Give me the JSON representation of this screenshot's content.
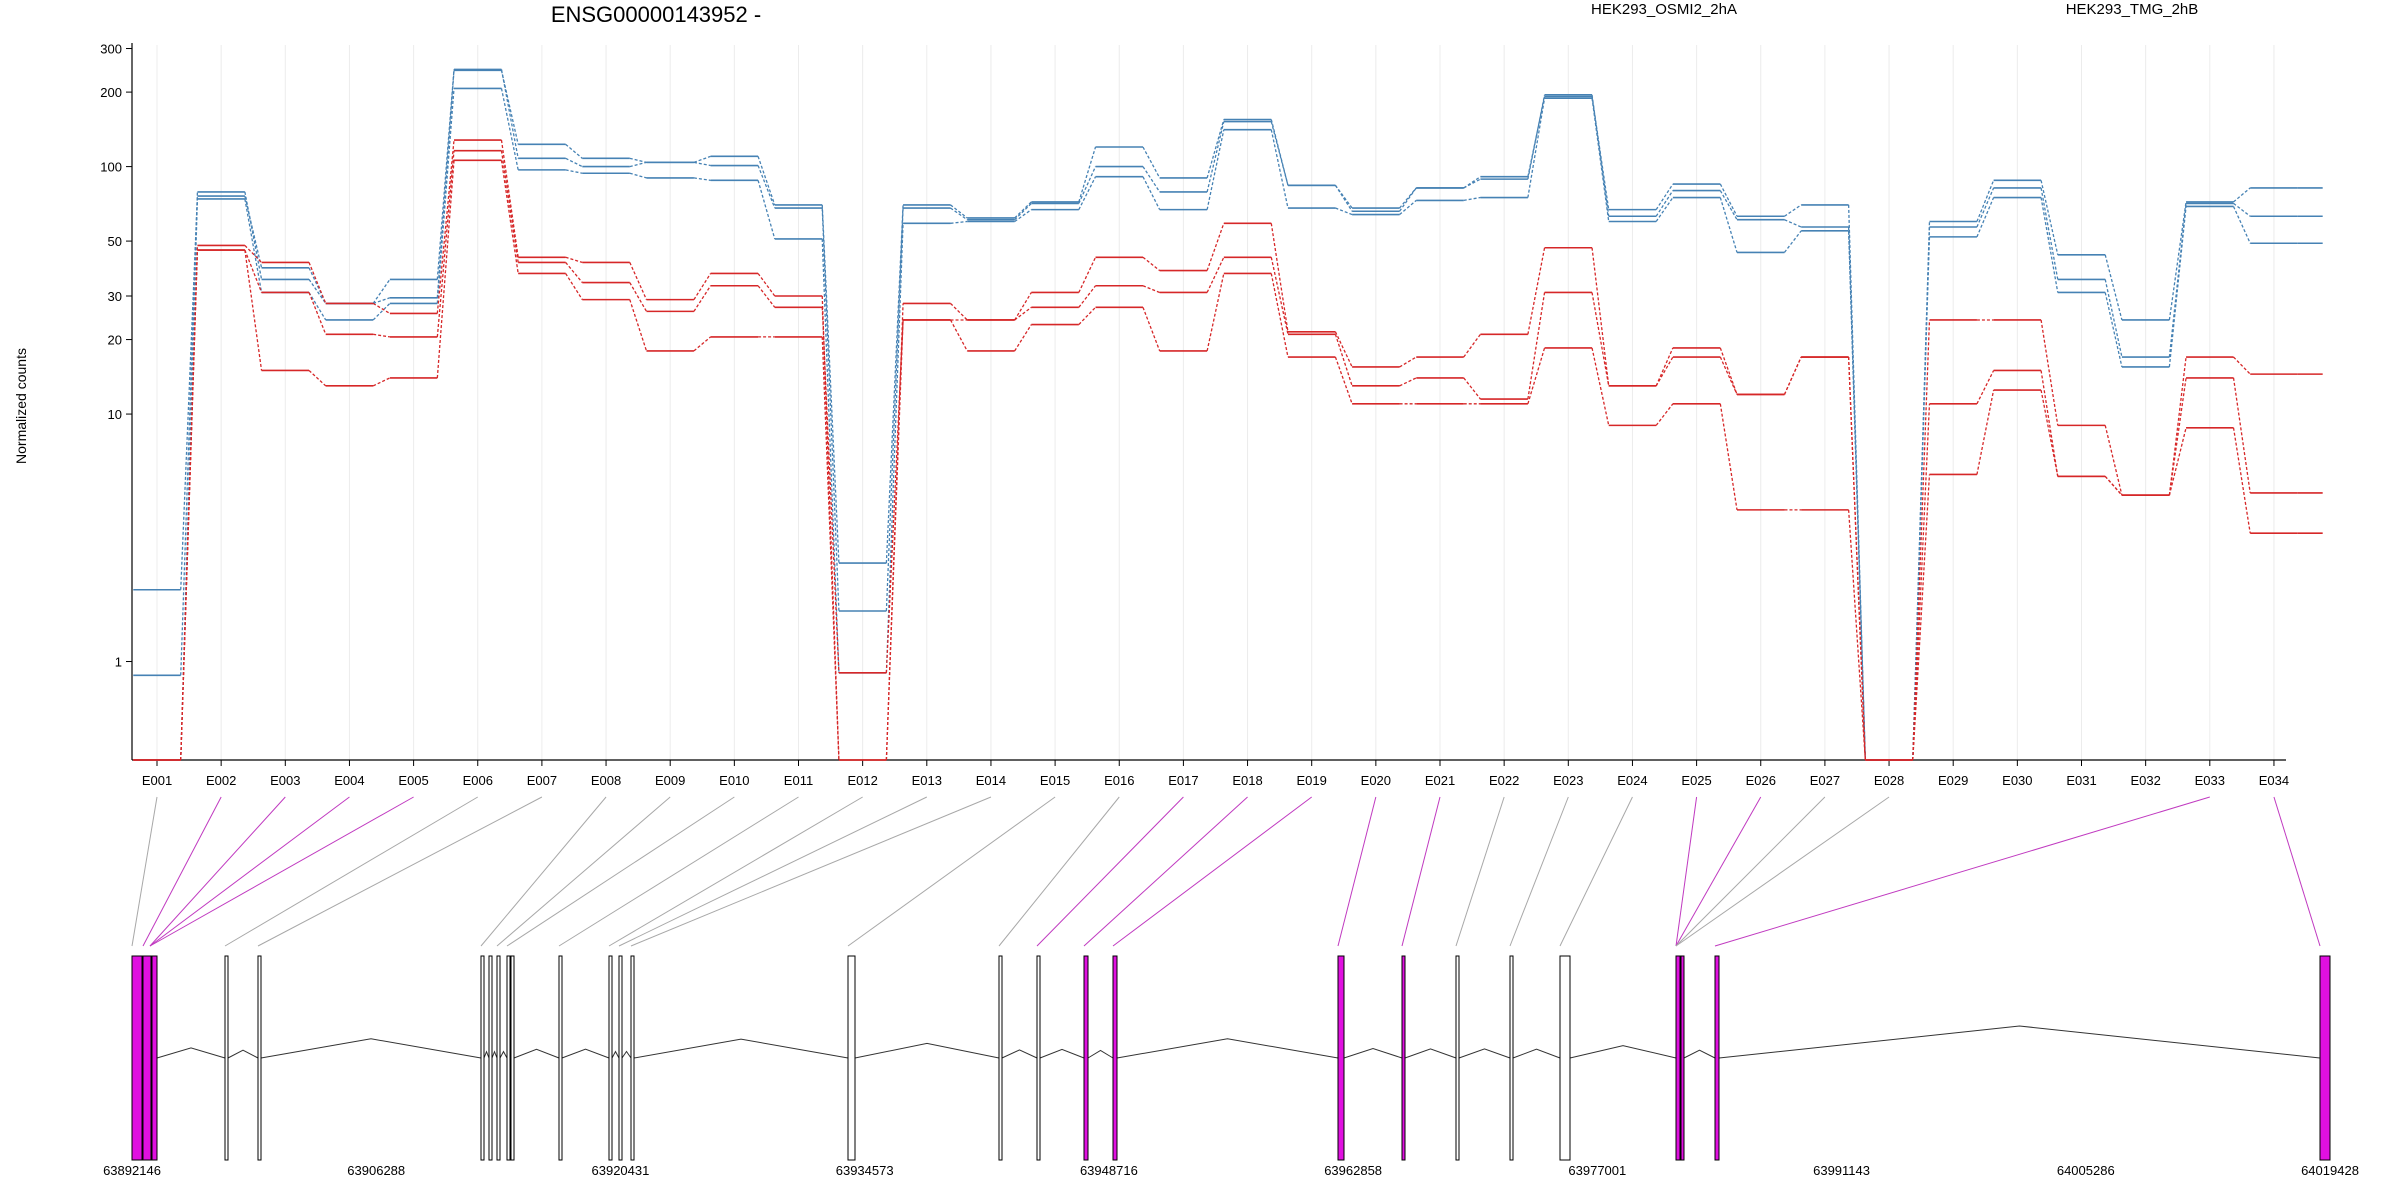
{
  "chart_data": {
    "type": "line",
    "title": "ENSG00000143952 -",
    "ylabel": "Normalized counts",
    "xlabel": "",
    "y_scale": "log",
    "ylim": [
      0.4,
      310
    ],
    "y_ticks": [
      {
        "value": 1,
        "label": "1"
      },
      {
        "value": 10,
        "label": "10"
      },
      {
        "value": 20,
        "label": "20"
      },
      {
        "value": 30,
        "label": "30"
      },
      {
        "value": 50,
        "label": "50"
      },
      {
        "value": 100,
        "label": "100"
      },
      {
        "value": 200,
        "label": "200"
      },
      {
        "value": 300,
        "label": "300"
      }
    ],
    "categories": [
      "E001",
      "E002",
      "E003",
      "E004",
      "E005",
      "E006",
      "E007",
      "E008",
      "E009",
      "E010",
      "E011",
      "E012",
      "E013",
      "E014",
      "E015",
      "E016",
      "E017",
      "E018",
      "E019",
      "E020",
      "E021",
      "E022",
      "E023",
      "E024",
      "E025",
      "E026",
      "E027",
      "E028",
      "E029",
      "E030",
      "E031",
      "E032",
      "E033",
      "E034"
    ],
    "grid": "vertical-light",
    "legend": [
      {
        "label": "HEK293_OSMI2_2hA",
        "color": "#d62728",
        "position": "top-center"
      },
      {
        "label": "HEK293_TMG_2hB",
        "color": "#4682b4",
        "position": "top-right"
      }
    ],
    "series": [
      {
        "group": "HEK293_TMG_2hB",
        "color": "#4682b4",
        "values": [
          1.95,
          76,
          39,
          28,
          29.5,
          245,
          123,
          108,
          104,
          110,
          70,
          2.5,
          70,
          62,
          72,
          120,
          90,
          155,
          84,
          68,
          82,
          91,
          192,
          67,
          85,
          63,
          70,
          0.4,
          60,
          88,
          44,
          24,
          72,
          82
        ]
      },
      {
        "group": "HEK293_TMG_2hB",
        "color": "#4682b4",
        "values": [
          0.88,
          79,
          35,
          28,
          35,
          247,
          108,
          100,
          104,
          101,
          68,
          1.6,
          68,
          61,
          71,
          100,
          79,
          152,
          84,
          66,
          82,
          89,
          195,
          63,
          80,
          61,
          57,
          0.4,
          57,
          82,
          35,
          17,
          71,
          63
        ]
      },
      {
        "group": "HEK293_TMG_2hB",
        "color": "#4682b4",
        "values": [
          0.4,
          74,
          31,
          24,
          28,
          207,
          97,
          94,
          90,
          88,
          51,
          0.9,
          59,
          60,
          67,
          91,
          67,
          141,
          68,
          64,
          73,
          75,
          189,
          60,
          75,
          45,
          55,
          0.4,
          52,
          75,
          31,
          15.5,
          69,
          49
        ]
      },
      {
        "group": "HEK293_OSMI2_2hA",
        "color": "#d62728",
        "values": [
          0.4,
          48,
          41,
          28,
          25.5,
          128,
          43,
          41,
          29,
          37,
          30,
          0.4,
          28,
          24,
          31,
          43,
          38,
          59,
          21.5,
          15.5,
          17,
          21,
          47,
          13,
          18.5,
          12,
          17,
          0.4,
          24,
          24,
          9,
          4.7,
          17,
          14.5
        ]
      },
      {
        "group": "HEK293_OSMI2_2hA",
        "color": "#d62728",
        "values": [
          0.4,
          46,
          31,
          21,
          20.5,
          116,
          41,
          34,
          26,
          33,
          27,
          0.9,
          24,
          24,
          27,
          33,
          31,
          43,
          21,
          13,
          14,
          11.5,
          31,
          13,
          17,
          12,
          17,
          0.4,
          11,
          15,
          5.6,
          4.7,
          14,
          4.8
        ]
      },
      {
        "group": "HEK293_OSMI2_2hA",
        "color": "#d62728",
        "values": [
          0.4,
          46,
          15,
          13,
          14,
          106,
          37,
          29,
          18,
          20.5,
          20.5,
          0.4,
          24,
          18,
          23,
          27,
          18,
          37,
          17,
          11,
          11,
          11,
          18.5,
          9,
          11,
          4.1,
          4.1,
          0.4,
          5.7,
          12.5,
          5.6,
          4.7,
          8.8,
          3.3
        ]
      }
    ],
    "gene_model": {
      "coordinate_ticks": [
        "63892146",
        "63906288",
        "63920431",
        "63934573",
        "63948716",
        "63962858",
        "63977001",
        "63991143",
        "64005286",
        "64019428"
      ],
      "connector_colors": {
        "differential": "#c03ac0",
        "normal": "#a8a8a8"
      },
      "exon_fill_differential": "#e010e0"
    }
  }
}
